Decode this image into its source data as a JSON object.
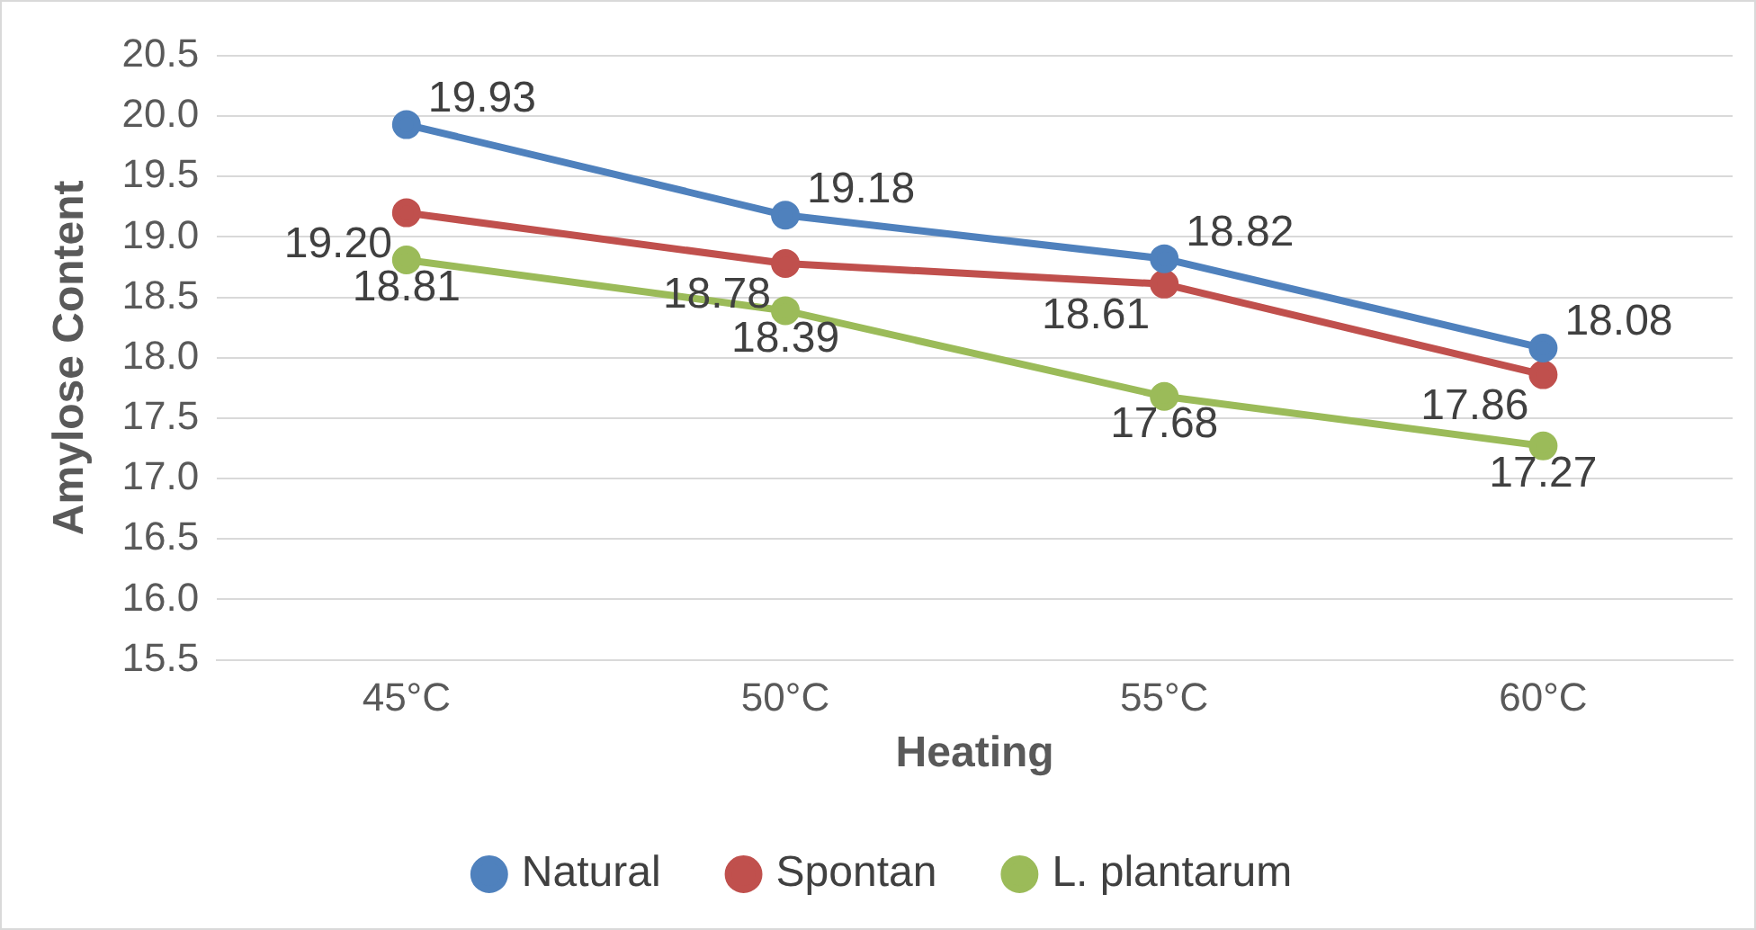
{
  "chart_data": {
    "type": "line",
    "xlabel": "Heating",
    "ylabel": "Amylose Content",
    "categories": [
      "45°C",
      "50°C",
      "55°C",
      "60°C"
    ],
    "series": [
      {
        "name": "Natural",
        "color": "#4f81bd",
        "values": [
          19.93,
          19.18,
          18.82,
          18.08
        ],
        "value_labels": [
          "19.93",
          "19.18",
          "18.82",
          "18.08"
        ]
      },
      {
        "name": "Spontan",
        "color": "#c0504d",
        "values": [
          19.2,
          18.78,
          18.61,
          17.86
        ],
        "value_labels": [
          "19.20",
          "18.78",
          "18.61",
          "17.86"
        ]
      },
      {
        "name": "L. plantarum",
        "color": "#9bbb59",
        "values": [
          18.81,
          18.39,
          17.68,
          17.27
        ],
        "value_labels": [
          "18.81",
          "18.39",
          "17.68",
          "17.27"
        ]
      }
    ],
    "ylim": [
      15.5,
      20.5
    ],
    "yticks": [
      15.5,
      {
        "value": 16,
        "label": "16.0"
      },
      16.5,
      {
        "value": 17,
        "label": "17.0"
      },
      17.5,
      {
        "value": 18,
        "label": "18.0"
      },
      18.5,
      {
        "value": 19,
        "label": "19.0"
      },
      19.5,
      {
        "value": 20,
        "label": "20.0"
      },
      20.5
    ],
    "grid": "y",
    "legend": "bottom",
    "marker": "circle",
    "line_style": "solid"
  }
}
